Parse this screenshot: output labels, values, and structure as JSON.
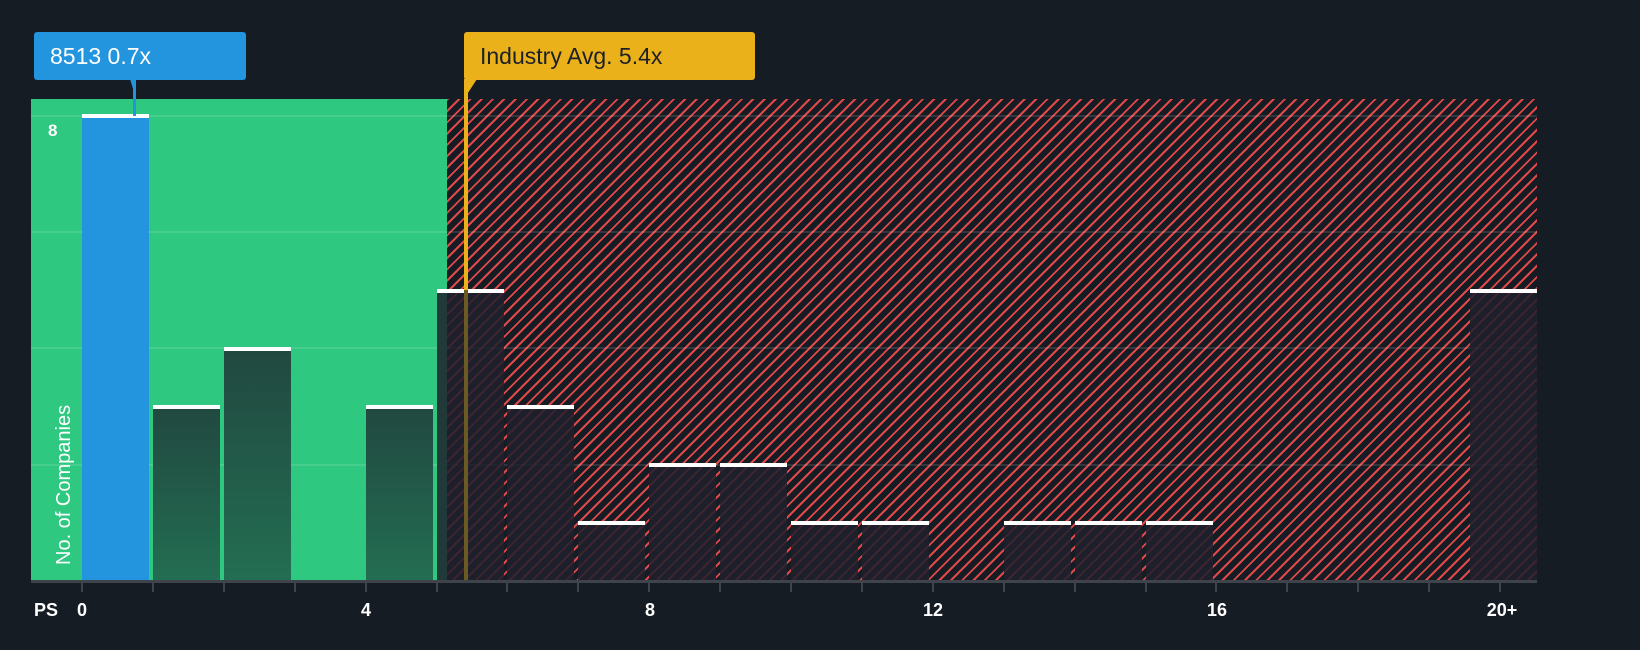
{
  "chart_data": {
    "type": "bar",
    "title": "",
    "xlabel": "PS",
    "ylabel": "No. of Companies",
    "x_bins": [
      "0-1",
      "1-2",
      "2-3",
      "3-4",
      "4-5",
      "5-6",
      "6-7",
      "7-8",
      "8-9",
      "9-10",
      "10-11",
      "11-12",
      "12-13",
      "13-14",
      "14-15",
      "15-16",
      "16-17",
      "17-18",
      "18-19",
      "19-20",
      "20+"
    ],
    "values": [
      8,
      3,
      4,
      0,
      3,
      5,
      3,
      1,
      2,
      2,
      1,
      1,
      0,
      1,
      1,
      1,
      0,
      0,
      0,
      0,
      5
    ],
    "highlight_bin": "0-1",
    "x_tick_labels": [
      "0",
      "4",
      "8",
      "12",
      "16",
      "20+"
    ],
    "y_tick_labels": [
      "8"
    ],
    "ylim": [
      0,
      8.3
    ],
    "gridlines_y": [
      0,
      2,
      4,
      6,
      8
    ],
    "annotations": [
      {
        "label": "8513 0.7x",
        "value": 0.7,
        "color": "#2394de"
      },
      {
        "label": "Industry Avg. 5.4x",
        "value": 5.4,
        "color": "#ebb11a"
      }
    ],
    "zones": [
      {
        "name": "undervalued",
        "from": 0,
        "to": 5.2,
        "color": "#2ec880"
      },
      {
        "name": "overvalued",
        "from": 5.2,
        "to": 21,
        "color": "#e0484a"
      }
    ]
  },
  "labels": {
    "company_callout": "8513 0.7x",
    "industry_callout": "Industry Avg. 5.4x",
    "y_axis_title": "No. of Companies",
    "x_axis_title": "PS",
    "y_tick_top": "8",
    "x_ticks": [
      "0",
      "4",
      "8",
      "12",
      "16",
      "20+"
    ]
  },
  "colors": {
    "background": "#161c24",
    "company": "#2394de",
    "industry": "#ebb11a",
    "fair_zone": "#2ec880",
    "over_zone": "#e0484a"
  }
}
